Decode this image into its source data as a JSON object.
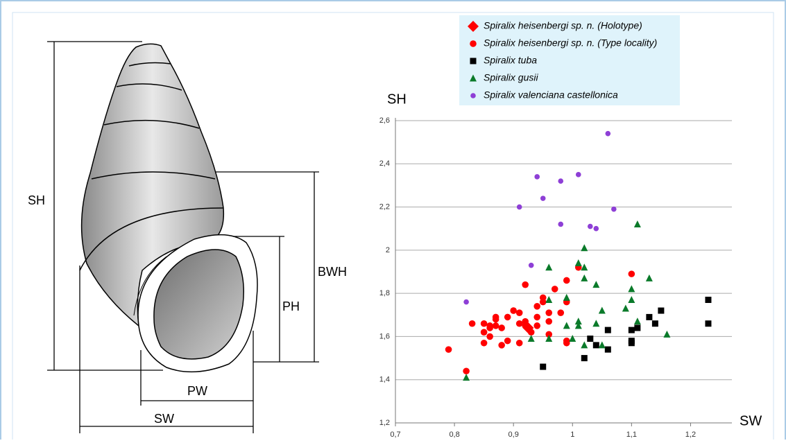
{
  "chart_data": {
    "type": "scatter",
    "x_label": "SW",
    "y_label": "SH",
    "xlim": [
      0.7,
      1.27
    ],
    "ylim": [
      1.2,
      2.6
    ],
    "xticks": [
      {
        "value": 0.7,
        "label": "0,7"
      },
      {
        "value": 0.8,
        "label": "0,8"
      },
      {
        "value": 0.9,
        "label": "0,9"
      },
      1,
      {
        "value": 1.1,
        "label": "1,1"
      },
      {
        "value": 1.2,
        "label": "1,2"
      }
    ],
    "yticks": [
      {
        "value": 1.2,
        "label": "1,2"
      },
      {
        "value": 1.4,
        "label": "1,4"
      },
      {
        "value": 1.6,
        "label": "1,6"
      },
      {
        "value": 1.8,
        "label": "1,8"
      },
      2,
      {
        "value": 2.2,
        "label": "2,2"
      },
      {
        "value": 2.4,
        "label": "2,4"
      },
      {
        "value": 2.6,
        "label": "2,6"
      }
    ],
    "grid": true,
    "legend": "top",
    "series": [
      {
        "name": "Spiralix heisenbergi sp. n. (Holotype)",
        "color": "#ff0000",
        "marker": "diamond",
        "x": [
          0.925
        ],
        "values": [
          1.64
        ]
      },
      {
        "name": "Spiralix heisenbergi sp. n. (Type locality)",
        "color": "#ff0000",
        "marker": "circle",
        "x": [
          0.79,
          0.82,
          0.83,
          0.85,
          0.85,
          0.85,
          0.86,
          0.86,
          0.86,
          0.87,
          0.87,
          0.87,
          0.88,
          0.88,
          0.89,
          0.89,
          0.9,
          0.91,
          0.91,
          0.91,
          0.92,
          0.92,
          0.92,
          0.93,
          0.94,
          0.94,
          0.94,
          0.95,
          0.95,
          0.96,
          0.96,
          0.96,
          0.97,
          0.98,
          0.99,
          0.99,
          0.99,
          0.99,
          1.01,
          1.1
        ],
        "values": [
          1.54,
          1.44,
          1.66,
          1.66,
          1.62,
          1.57,
          1.64,
          1.6,
          1.65,
          1.68,
          1.69,
          1.65,
          1.56,
          1.64,
          1.69,
          1.58,
          1.72,
          1.71,
          1.66,
          1.57,
          1.84,
          1.67,
          1.65,
          1.62,
          1.74,
          1.69,
          1.65,
          1.76,
          1.78,
          1.71,
          1.67,
          1.61,
          1.82,
          1.71,
          1.86,
          1.76,
          1.57,
          1.58,
          1.92,
          1.89
        ]
      },
      {
        "name": "Spiralix tuba",
        "color": "#000000",
        "marker": "square",
        "x": [
          0.95,
          1.02,
          1.03,
          1.04,
          1.06,
          1.06,
          1.1,
          1.1,
          1.1,
          1.11,
          1.13,
          1.14,
          1.15,
          1.23,
          1.23
        ],
        "values": [
          1.46,
          1.5,
          1.59,
          1.56,
          1.63,
          1.54,
          1.57,
          1.58,
          1.63,
          1.64,
          1.69,
          1.66,
          1.72,
          1.77,
          1.66
        ]
      },
      {
        "name": "Spiralix gusii",
        "color": "#0a7a2a",
        "marker": "triangle",
        "x": [
          0.82,
          0.93,
          0.96,
          0.96,
          0.96,
          0.99,
          0.99,
          1.0,
          1.01,
          1.01,
          1.01,
          1.02,
          1.02,
          1.02,
          1.02,
          1.04,
          1.04,
          1.05,
          1.05,
          1.09,
          1.1,
          1.1,
          1.11,
          1.11,
          1.13,
          1.16
        ],
        "values": [
          1.41,
          1.59,
          1.92,
          1.77,
          1.59,
          1.78,
          1.65,
          1.59,
          1.94,
          1.67,
          1.65,
          2.01,
          1.92,
          1.87,
          1.56,
          1.84,
          1.66,
          1.72,
          1.56,
          1.73,
          1.82,
          1.77,
          2.12,
          1.67,
          1.87,
          1.61
        ]
      },
      {
        "name": "Spiralix valenciana castellonica",
        "color": "#8e3fd6",
        "marker": "circle-small",
        "x": [
          0.82,
          0.91,
          0.93,
          0.94,
          0.95,
          0.98,
          0.98,
          1.01,
          1.03,
          1.04,
          1.06,
          1.07
        ],
        "values": [
          1.76,
          2.2,
          1.93,
          2.34,
          2.24,
          2.32,
          2.12,
          2.35,
          2.11,
          2.1,
          2.54,
          2.19
        ]
      }
    ]
  },
  "diagram": {
    "labels": [
      "SH",
      "BWH",
      "PH",
      "PW",
      "SW"
    ]
  }
}
